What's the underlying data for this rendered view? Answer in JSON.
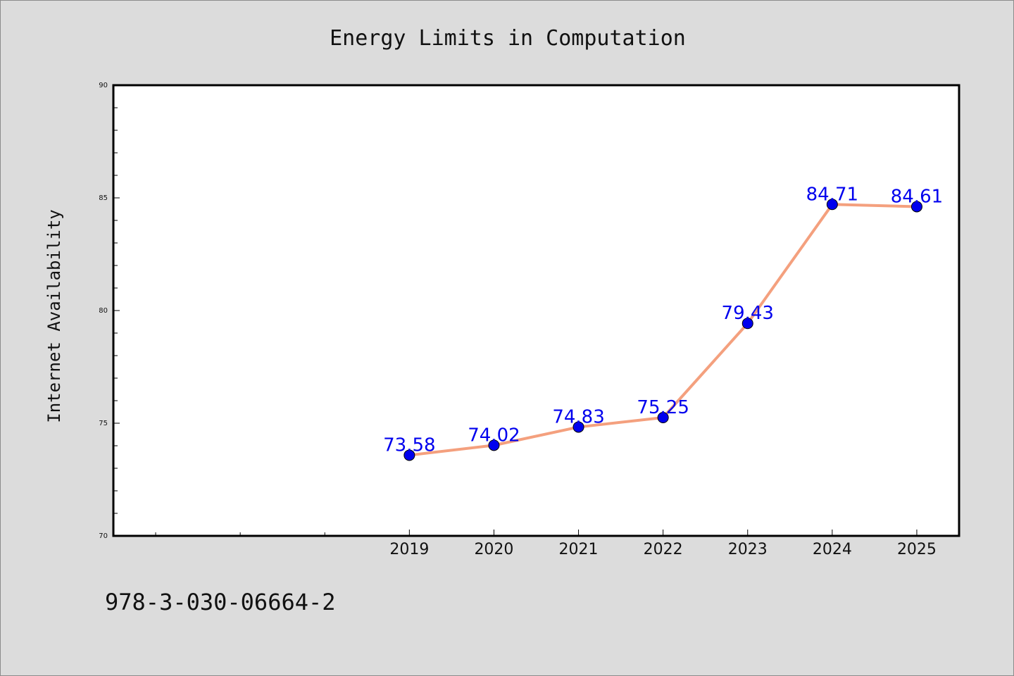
{
  "chart_data": {
    "type": "line",
    "title": "Energy Limits in Computation",
    "xlabel": "",
    "ylabel": "Internet Availability",
    "categories": [
      "2019",
      "2020",
      "2021",
      "2022",
      "2023",
      "2024",
      "2025"
    ],
    "series": [
      {
        "values": [
          73.58,
          74.02,
          74.83,
          75.25,
          79.43,
          84.71,
          84.61
        ],
        "line_color": "#f4a07e",
        "marker_color": "#0000ee"
      }
    ],
    "data_labels": [
      "73.58",
      "74.02",
      "74.83",
      "75.25",
      "79.43",
      "84.71",
      "84.61"
    ],
    "data_label_color": "#0000ee",
    "xlim": [
      2015.5,
      2025.5
    ],
    "ylim": [
      70,
      90
    ],
    "y_ticks": [
      "70",
      "75",
      "80",
      "85",
      "90"
    ],
    "y_tick_values": [
      70,
      75,
      80,
      85,
      90
    ],
    "y_minor_step": 1,
    "x_minor_ticks": [
      2016,
      2017,
      2018
    ],
    "grid": false,
    "legend": "none"
  },
  "isbn": "978-3-030-06664-2",
  "colors": {
    "background": "#dcdcdc",
    "plot_area": "#ffffff",
    "axes": "#000000"
  }
}
